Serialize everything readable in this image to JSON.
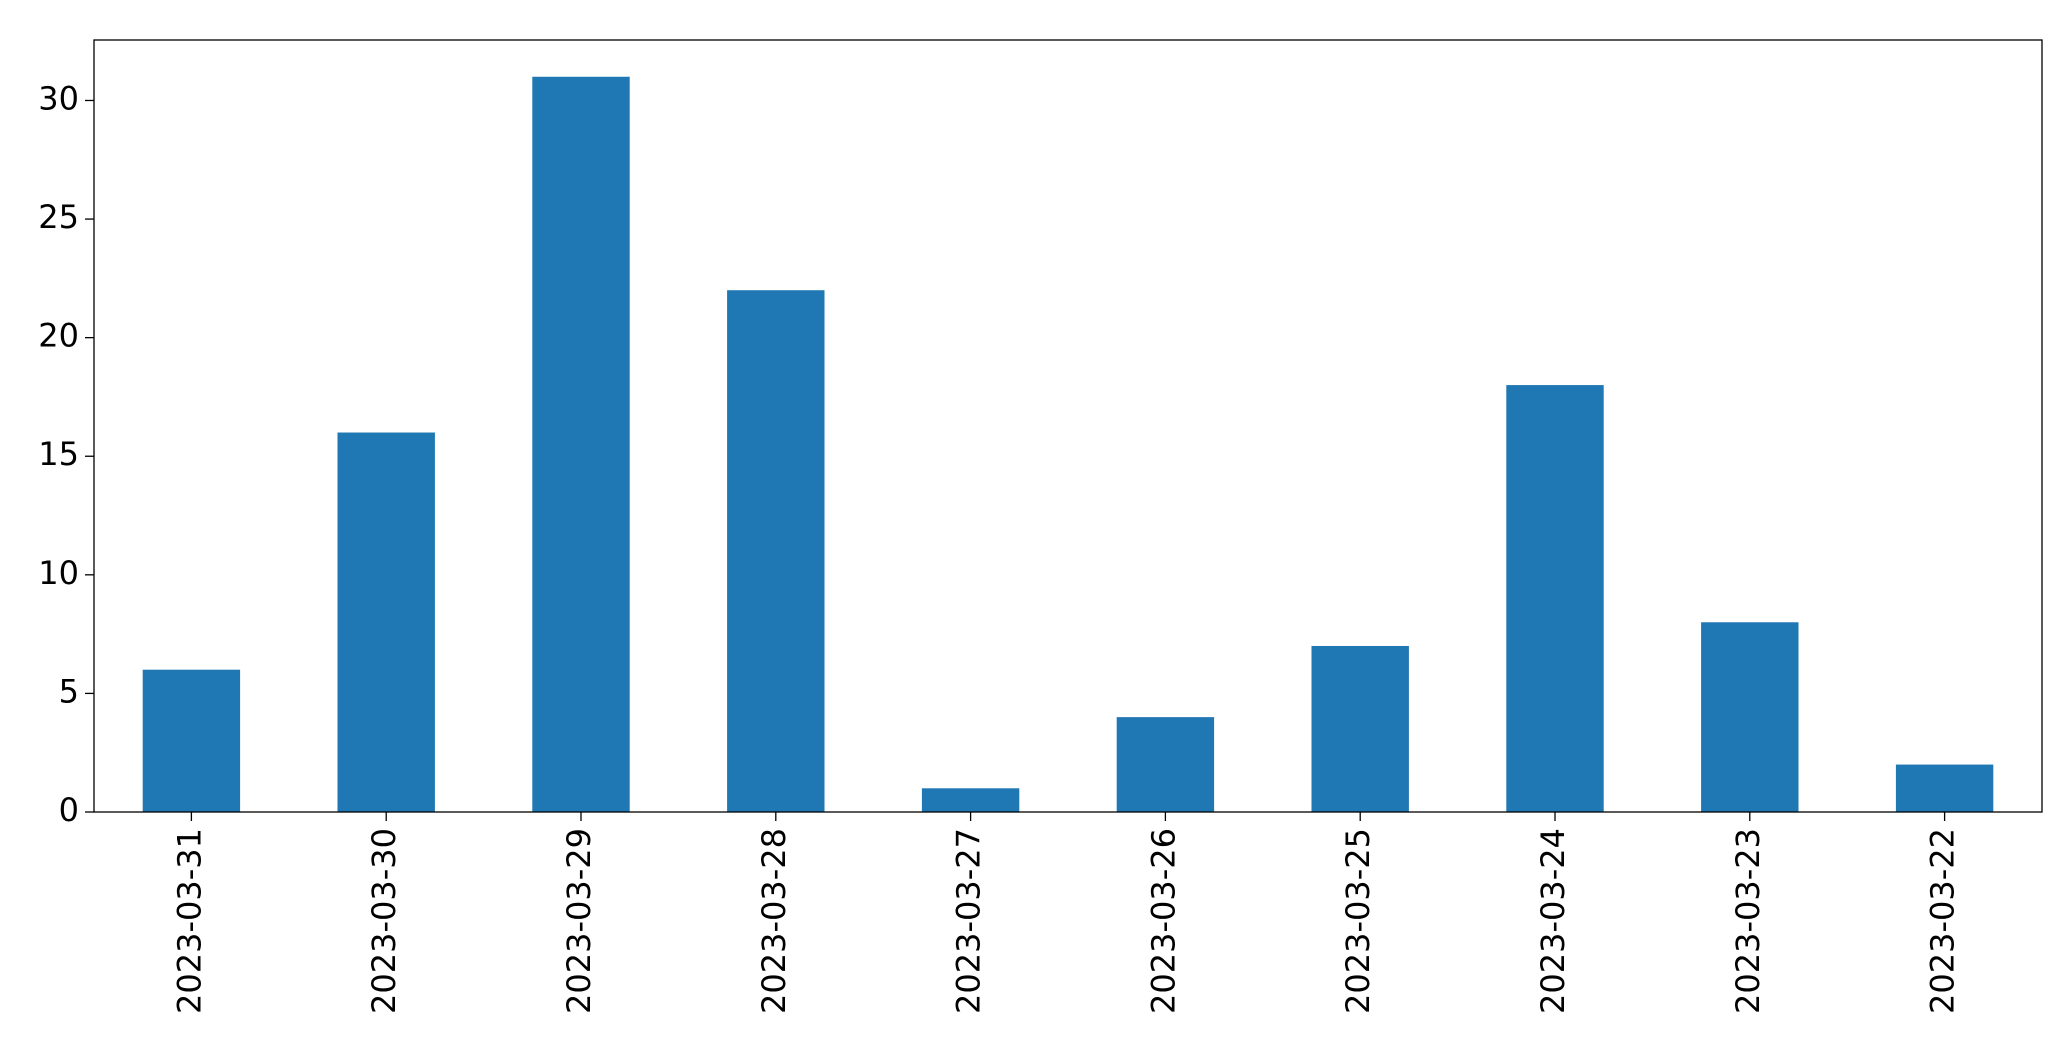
{
  "chart_data": {
    "type": "bar",
    "categories": [
      "2023-03-31",
      "2023-03-30",
      "2023-03-29",
      "2023-03-28",
      "2023-03-27",
      "2023-03-26",
      "2023-03-25",
      "2023-03-24",
      "2023-03-23",
      "2023-03-22"
    ],
    "values": [
      6,
      16,
      31,
      22,
      1,
      4,
      7,
      18,
      8,
      2
    ],
    "color": "#1f77b4",
    "ylim": [
      0,
      32.55
    ],
    "yticks": [
      0,
      5,
      10,
      15,
      20,
      25,
      30
    ],
    "grid": false
  }
}
